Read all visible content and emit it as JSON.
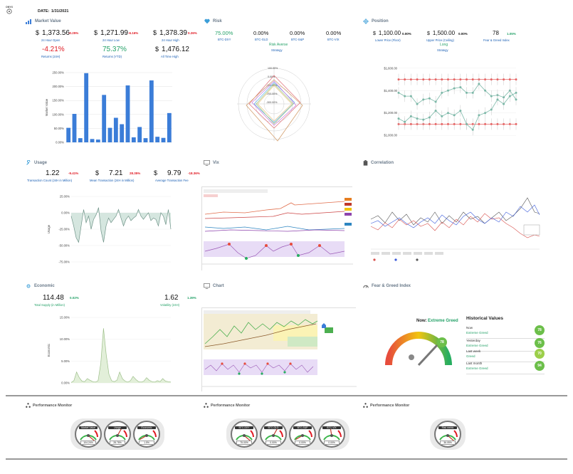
{
  "header": {
    "logo": "DATE:",
    "logo_text": "ONYX",
    "date_label": "DATE:",
    "date_value": "1/31/2021"
  },
  "market_value": {
    "title": "Market Value",
    "kpis": [
      {
        "cur": "$",
        "value": "1,373.56",
        "change": "-0.25%",
        "label": "24 Hour Open",
        "color": "red"
      },
      {
        "cur": "$",
        "value": "1,271.99",
        "change": "-6.16%",
        "label": "24 Hour Low",
        "color": "red"
      },
      {
        "cur": "$",
        "value": "1,378.39",
        "change": "0.26%",
        "label": "24 Hour High",
        "color": "red"
      },
      {
        "cur": "",
        "value": "-4.21%",
        "change": "",
        "label": "Returns (24H)",
        "color": "red"
      },
      {
        "cur": "",
        "value": "75.37%",
        "change": "",
        "label": "Returns (YTD)",
        "color": "green"
      },
      {
        "cur": "$",
        "value": "1,476.12",
        "change": "",
        "label": "All Time High",
        "color": "black"
      }
    ]
  },
  "risk": {
    "title": "Risk",
    "kpis": [
      {
        "value": "75.00%",
        "label": "BTC-DXY",
        "color": "green"
      },
      {
        "value": "0.00%",
        "label": "BTC-GLD",
        "color": "black"
      },
      {
        "value": "0.00%",
        "label": "BTC-S&P",
        "color": "black"
      },
      {
        "value": "0.00%",
        "label": "BTC-VIX",
        "color": "black"
      }
    ],
    "strategy_value": "Risk Averse",
    "strategy_label": "Strategy"
  },
  "position": {
    "title": "Position",
    "kpis": [
      {
        "cur": "$",
        "value": "1,100.00",
        "change": "0.00%",
        "label": "Lower Price (Floor)"
      },
      {
        "cur": "$",
        "value": "1,500.00",
        "change": "0.00%",
        "label": "Upper Price (Ceiling)"
      },
      {
        "cur": "",
        "value": "78",
        "change": "1.05%",
        "label": "Fear & Greed Index"
      }
    ],
    "strategy_value": "Long",
    "strategy_label": "Strategy"
  },
  "usage": {
    "title": "Usage",
    "kpis": [
      {
        "value": "1.22",
        "change": "-9.41%",
        "label": "Transaction Count (24H in Million)"
      },
      {
        "cur": "$",
        "value": "7.21",
        "change": "28.35%",
        "label": "Mean Transaction (24H in Million)"
      },
      {
        "cur": "$",
        "value": "9.79",
        "change": "-18.36%",
        "label": "Average Transaction Fee"
      }
    ]
  },
  "vix": {
    "title": "Vix"
  },
  "correlation": {
    "title": "Correlation"
  },
  "economic": {
    "title": "Economic",
    "kpis": [
      {
        "value": "114.48",
        "change": "0.02%",
        "label": "Total Supply (in Million)"
      },
      {
        "value": "1.62",
        "change": "1.39%",
        "label": "Volatility (24H)"
      }
    ]
  },
  "chart_panel": {
    "title": "Chart"
  },
  "fear_greed": {
    "title": "Fear & Greed Index",
    "now_label": "Now:",
    "now_status": "Extreme Greed",
    "now_value": "78",
    "history_title": "Historical Values",
    "history": [
      {
        "label": "Now",
        "status": "Extreme Greed",
        "value": "78"
      },
      {
        "label": "Yesterday",
        "status": "Extreme Greed",
        "value": "76"
      },
      {
        "label": "Last week",
        "status": "Greed",
        "value": "70"
      },
      {
        "label": "Last month",
        "status": "Extreme Greed",
        "value": "94"
      }
    ]
  },
  "performance": {
    "title": "Performance Monitor",
    "groups": [
      {
        "gauges": [
          {
            "name": "Market Value",
            "value": "104.24%"
          },
          {
            "name": "Usage",
            "value": "28.78%"
          },
          {
            "name": "Economic",
            "value": "1.5%"
          }
        ]
      },
      {
        "gauges": [
          {
            "name": "BTC-DXY",
            "value": "75.00%"
          },
          {
            "name": "BTC-GLD",
            "value": "0.00%"
          },
          {
            "name": "BTC-S&P",
            "value": "0.00%"
          },
          {
            "name": "BTC-VIX",
            "value": "0.00%"
          }
        ]
      },
      {
        "gauges": [
          {
            "name": "Risk metric",
            "value": "36.05%"
          }
        ]
      }
    ]
  },
  "chart_data": [
    {
      "type": "bar",
      "ylabel": "Market Value",
      "ylim": [
        0,
        250
      ],
      "yticks": [
        "250.00%",
        "200.00%",
        "150.00%",
        "100.00%",
        "50.00%",
        "0.00%"
      ],
      "values": [
        52,
        102,
        15,
        248,
        12,
        10,
        170,
        52,
        88,
        65,
        204,
        18,
        55,
        15,
        222,
        20,
        16,
        105
      ],
      "color": "#3b7dd8"
    },
    {
      "type": "area",
      "ylabel": "Usage",
      "ylim": [
        -75,
        25
      ],
      "yticks": [
        "25.00%",
        "0.00%",
        "-25.00%",
        "-50.00%",
        "-75.00%"
      ],
      "values": [
        -5,
        -20,
        -38,
        -45,
        -20,
        5,
        -15,
        -5,
        -25,
        -10,
        -3,
        8,
        -28,
        -45,
        -20,
        -8,
        -15,
        -10,
        -5,
        5,
        -8,
        -20,
        -10,
        -5,
        -12,
        -8,
        -5,
        5,
        -5,
        -10,
        -5,
        0,
        -12,
        -8,
        -10,
        -20,
        0,
        -5,
        -18,
        5,
        -25
      ]
    },
    {
      "type": "area",
      "ylabel": "Economic",
      "ylim": [
        0,
        15
      ],
      "yticks": [
        "15.00%",
        "10.00%",
        "5.00%",
        "0.00%"
      ],
      "values": [
        0.1,
        0.5,
        2.5,
        1.2,
        0.4,
        0.3,
        1.0,
        0.6,
        0.3,
        0.2,
        0.5,
        4.5,
        12.5,
        6.5,
        2.0,
        0.5,
        0.3,
        0.6,
        2.5,
        1.0,
        0.4,
        0.2,
        0.5,
        1.5,
        0.8,
        0.3,
        0.2,
        0.4,
        1.2,
        0.6,
        0.3,
        0.2,
        0.5,
        0.3,
        1.0,
        0.4,
        0.3,
        0.2
      ]
    },
    {
      "type": "line",
      "yticks": [
        "$1,600.00",
        "$1,400.00",
        "$1,200.00",
        "$1,000.00"
      ],
      "ylim": [
        950,
        1650
      ],
      "series": [
        {
          "color": "#e66565",
          "values": [
            1100,
            1100,
            1100,
            1100,
            1100,
            1100,
            1100,
            1100,
            1100,
            1100,
            1100,
            1100,
            1100,
            1100,
            1100,
            1100,
            1100,
            1100,
            1100,
            1100
          ]
        },
        {
          "color": "#e66565",
          "values": [
            1500,
            1500,
            1500,
            1500,
            1500,
            1500,
            1500,
            1500,
            1500,
            1500,
            1500,
            1500,
            1500,
            1500,
            1500,
            1500,
            1500,
            1500,
            1500,
            1500
          ]
        },
        {
          "color": "#7cb8a8",
          "values": [
            1380,
            1350,
            1350,
            1280,
            1320,
            1330,
            1300,
            1380,
            1400,
            1420,
            1430,
            1380,
            1380,
            1460,
            1400,
            1350,
            1360,
            1340,
            1400,
            1320
          ]
        },
        {
          "color": "#7cb8a8",
          "values": [
            1150,
            1120,
            1170,
            1150,
            1140,
            1160,
            1220,
            1170,
            1200,
            1180,
            1220,
            1100,
            1050,
            1180,
            1200,
            1230,
            1320,
            1280,
            1350,
            1380
          ]
        }
      ]
    }
  ]
}
